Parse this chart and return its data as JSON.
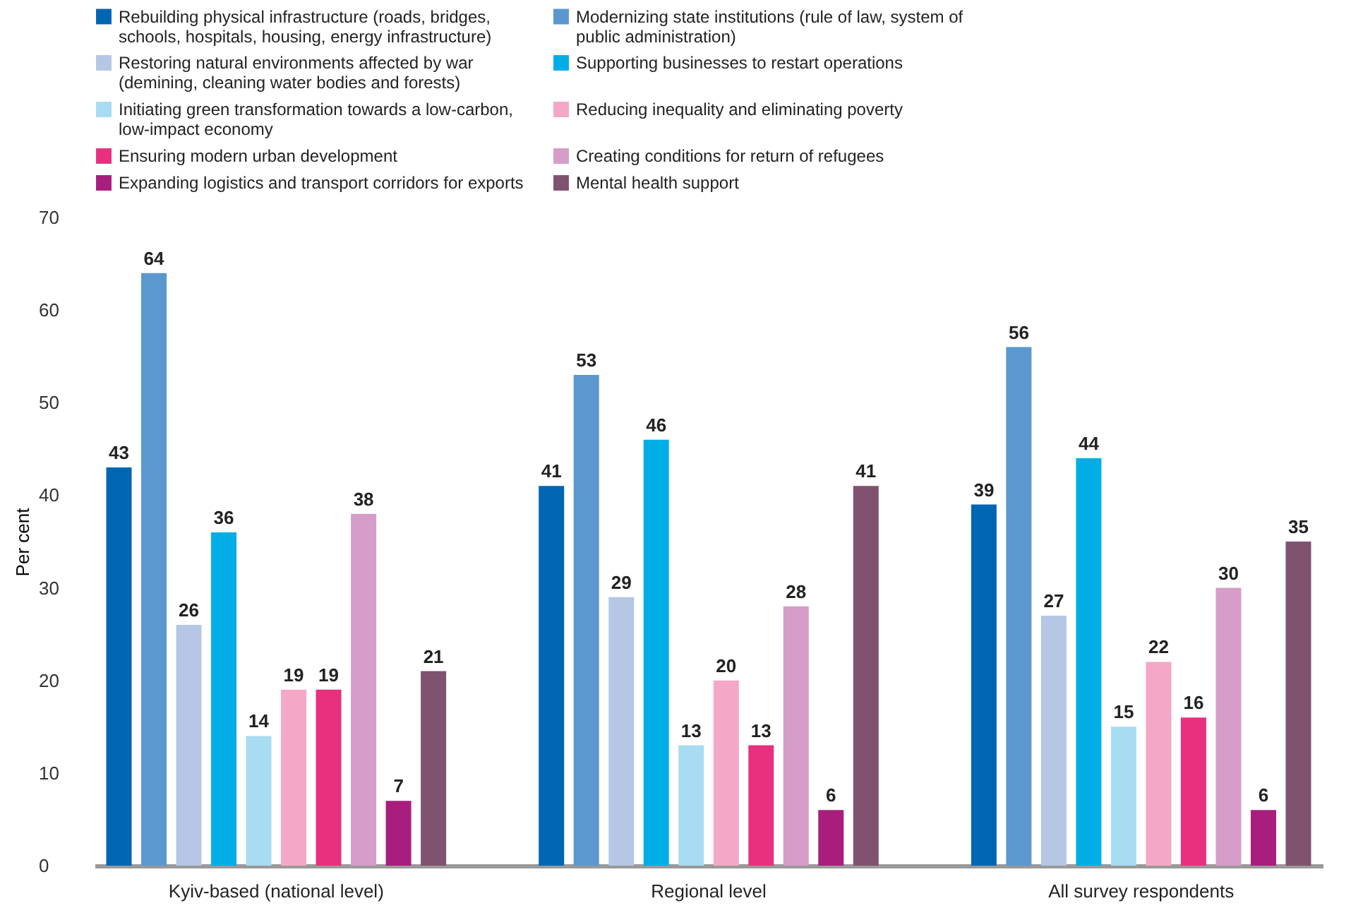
{
  "chart_data": {
    "type": "bar",
    "ylabel": "Per cent",
    "categories": [
      "Kyiv-based (national level)",
      "Regional level",
      "All survey respondents"
    ],
    "ylim": [
      0,
      70
    ],
    "yticks": [
      0,
      10,
      20,
      30,
      40,
      50,
      60,
      70
    ],
    "grid": false,
    "legend": "top",
    "data_labels": true,
    "series": [
      {
        "name": "Rebuilding physical infrastructure (roads, bridges, schools, hospitals, housing, energy infrastructure)",
        "color": "#0066b3",
        "values": [
          43,
          41,
          39
        ]
      },
      {
        "name": "Modernizing state institutions (rule of law, system of public administration)",
        "color": "#5b98cf",
        "values": [
          64,
          53,
          56
        ]
      },
      {
        "name": "Restoring natural environments affected by war (demining, cleaning water bodies and forests)",
        "color": "#b5c7e4",
        "values": [
          26,
          29,
          27
        ]
      },
      {
        "name": "Supporting businesses to restart operations",
        "color": "#00aee6",
        "values": [
          36,
          46,
          44
        ]
      },
      {
        "name": "Initiating green transformation towards a low-carbon, low-impact economy",
        "color": "#a8dcf2",
        "values": [
          14,
          13,
          15
        ]
      },
      {
        "name": "Reducing inequality and eliminating poverty",
        "color": "#f4a8c6",
        "values": [
          19,
          20,
          22
        ]
      },
      {
        "name": "Ensuring modern urban development",
        "color": "#e8307f",
        "values": [
          19,
          13,
          16
        ]
      },
      {
        "name": "Creating conditions for return of refugees",
        "color": "#d59dc8",
        "values": [
          38,
          28,
          30
        ]
      },
      {
        "name": "Expanding logistics and transport corridors for exports",
        "color": "#a81e7d",
        "values": [
          7,
          6,
          6
        ]
      },
      {
        "name": "Mental health support",
        "color": "#7f526f",
        "values": [
          21,
          41,
          35
        ]
      }
    ]
  }
}
